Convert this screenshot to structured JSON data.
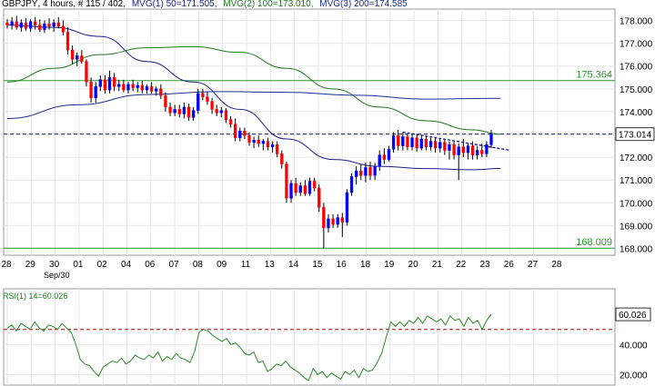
{
  "header": {
    "symbol": "GBPJPY",
    "interval": ", 4 hours, # 115 / 402,",
    "mvg1": "MVG(1) 50=171.505,",
    "mvg2": "MVG(2) 100=173.010,",
    "mvg3": "MVG(3) 200=174.585"
  },
  "colors": {
    "background": "#ffffff",
    "grid": "#e6e6e6",
    "up_candle": "#0000ff",
    "down_candle": "#ff0000",
    "mvg1": "#1c1c8a",
    "mvg2": "#1f7a1f",
    "mvg3": "#1c2e8f",
    "hline": "#2a9a2a",
    "price_line": "#1c1c6e",
    "rsi_line": "#2a8a2a",
    "rsi_ref": "#c00000",
    "header_mvg1": "#1c1c8a",
    "header_mvg2": "#1f7a1f",
    "header_mvg3": "#1c2e8f"
  },
  "chart_data": [
    {
      "type": "candlestick",
      "title": "GBPJPY, 4 hours",
      "ylim": [
        167.7,
        178.5
      ],
      "y_ticks": [
        168,
        169,
        170,
        171,
        172,
        173,
        174,
        175,
        176,
        177,
        178
      ],
      "y_tick_labels": [
        "168.000",
        "169.000",
        "170.000",
        "171.000",
        "172.000",
        "173.000",
        "174.000",
        "175.000",
        "176.000",
        "177.000",
        "178.000"
      ],
      "x_ticks": [
        "28",
        "29",
        "30",
        "01",
        "02",
        "04",
        "06",
        "07",
        "08",
        "09",
        "11",
        "13",
        "14",
        "15",
        "16",
        "18",
        "19",
        "20",
        "21",
        "22",
        "23",
        "26",
        "27",
        "28"
      ],
      "x_sublabel": "Sep/30",
      "grid": true,
      "candles": [
        {
          "o": 177.9,
          "h": 178.05,
          "l": 177.65,
          "c": 177.8
        },
        {
          "o": 177.8,
          "h": 178.15,
          "l": 177.6,
          "c": 177.95
        },
        {
          "o": 177.95,
          "h": 178.2,
          "l": 177.6,
          "c": 177.7
        },
        {
          "o": 177.7,
          "h": 178.05,
          "l": 177.5,
          "c": 177.9
        },
        {
          "o": 177.9,
          "h": 178.1,
          "l": 177.55,
          "c": 177.65
        },
        {
          "o": 177.65,
          "h": 178.05,
          "l": 177.5,
          "c": 177.95
        },
        {
          "o": 177.95,
          "h": 178.15,
          "l": 177.6,
          "c": 177.8
        },
        {
          "o": 177.8,
          "h": 178.05,
          "l": 177.5,
          "c": 177.6
        },
        {
          "o": 177.6,
          "h": 178.0,
          "l": 177.45,
          "c": 177.85
        },
        {
          "o": 177.85,
          "h": 178.1,
          "l": 177.6,
          "c": 177.75
        },
        {
          "o": 177.75,
          "h": 178.05,
          "l": 177.5,
          "c": 177.9
        },
        {
          "o": 177.9,
          "h": 178.15,
          "l": 177.65,
          "c": 177.75
        },
        {
          "o": 177.75,
          "h": 178.0,
          "l": 177.35,
          "c": 177.5
        },
        {
          "o": 177.5,
          "h": 177.7,
          "l": 176.5,
          "c": 176.7
        },
        {
          "o": 176.7,
          "h": 176.9,
          "l": 176.1,
          "c": 176.3
        },
        {
          "o": 176.3,
          "h": 176.6,
          "l": 176.0,
          "c": 176.45
        },
        {
          "o": 176.45,
          "h": 176.7,
          "l": 176.1,
          "c": 176.2
        },
        {
          "o": 176.2,
          "h": 176.3,
          "l": 175.1,
          "c": 175.3
        },
        {
          "o": 175.3,
          "h": 175.5,
          "l": 174.4,
          "c": 174.6
        },
        {
          "o": 174.6,
          "h": 175.3,
          "l": 174.4,
          "c": 175.1
        },
        {
          "o": 175.1,
          "h": 175.6,
          "l": 174.9,
          "c": 175.4
        },
        {
          "o": 175.4,
          "h": 175.6,
          "l": 174.8,
          "c": 174.95
        },
        {
          "o": 174.95,
          "h": 175.8,
          "l": 174.8,
          "c": 175.5
        },
        {
          "o": 175.5,
          "h": 175.7,
          "l": 174.9,
          "c": 175.1
        },
        {
          "o": 175.1,
          "h": 175.4,
          "l": 174.9,
          "c": 175.2
        },
        {
          "o": 175.2,
          "h": 175.4,
          "l": 174.85,
          "c": 174.95
        },
        {
          "o": 174.95,
          "h": 175.3,
          "l": 174.8,
          "c": 175.2
        },
        {
          "o": 175.2,
          "h": 175.4,
          "l": 174.9,
          "c": 175.05
        },
        {
          "o": 175.05,
          "h": 175.3,
          "l": 174.85,
          "c": 175.15
        },
        {
          "o": 175.15,
          "h": 175.35,
          "l": 174.8,
          "c": 174.95
        },
        {
          "o": 174.95,
          "h": 175.2,
          "l": 174.8,
          "c": 175.1
        },
        {
          "o": 175.1,
          "h": 175.3,
          "l": 174.8,
          "c": 174.9
        },
        {
          "o": 174.9,
          "h": 175.1,
          "l": 174.7,
          "c": 175.0
        },
        {
          "o": 175.0,
          "h": 175.2,
          "l": 174.55,
          "c": 174.7
        },
        {
          "o": 174.7,
          "h": 174.85,
          "l": 174.0,
          "c": 174.2
        },
        {
          "o": 174.2,
          "h": 174.4,
          "l": 173.8,
          "c": 173.95
        },
        {
          "o": 173.95,
          "h": 174.3,
          "l": 173.8,
          "c": 174.1
        },
        {
          "o": 174.1,
          "h": 174.3,
          "l": 173.75,
          "c": 173.9
        },
        {
          "o": 173.9,
          "h": 174.4,
          "l": 173.7,
          "c": 174.2
        },
        {
          "o": 174.2,
          "h": 174.35,
          "l": 173.6,
          "c": 173.75
        },
        {
          "o": 173.75,
          "h": 174.2,
          "l": 173.6,
          "c": 174.05
        },
        {
          "o": 174.05,
          "h": 175.0,
          "l": 173.9,
          "c": 174.8
        },
        {
          "o": 174.8,
          "h": 175.0,
          "l": 174.5,
          "c": 174.65
        },
        {
          "o": 174.65,
          "h": 174.85,
          "l": 174.3,
          "c": 174.45
        },
        {
          "o": 174.45,
          "h": 174.6,
          "l": 173.9,
          "c": 174.1
        },
        {
          "o": 174.1,
          "h": 174.3,
          "l": 173.8,
          "c": 173.95
        },
        {
          "o": 173.95,
          "h": 174.2,
          "l": 173.75,
          "c": 174.05
        },
        {
          "o": 174.05,
          "h": 174.15,
          "l": 173.5,
          "c": 173.65
        },
        {
          "o": 173.65,
          "h": 173.8,
          "l": 173.3,
          "c": 173.45
        },
        {
          "o": 173.45,
          "h": 173.7,
          "l": 172.7,
          "c": 172.85
        },
        {
          "o": 172.85,
          "h": 173.3,
          "l": 172.7,
          "c": 173.15
        },
        {
          "o": 173.15,
          "h": 173.3,
          "l": 172.8,
          "c": 172.95
        },
        {
          "o": 172.95,
          "h": 173.1,
          "l": 172.5,
          "c": 172.65
        },
        {
          "o": 172.65,
          "h": 172.9,
          "l": 172.4,
          "c": 172.75
        },
        {
          "o": 172.75,
          "h": 172.95,
          "l": 172.45,
          "c": 172.6
        },
        {
          "o": 172.6,
          "h": 172.8,
          "l": 172.3,
          "c": 172.7
        },
        {
          "o": 172.7,
          "h": 172.85,
          "l": 172.3,
          "c": 172.45
        },
        {
          "o": 172.45,
          "h": 172.7,
          "l": 172.2,
          "c": 172.55
        },
        {
          "o": 172.55,
          "h": 172.7,
          "l": 172.0,
          "c": 172.15
        },
        {
          "o": 172.15,
          "h": 172.3,
          "l": 171.5,
          "c": 171.7
        },
        {
          "o": 171.7,
          "h": 171.8,
          "l": 170.0,
          "c": 170.2
        },
        {
          "o": 170.2,
          "h": 171.0,
          "l": 170.0,
          "c": 170.85
        },
        {
          "o": 170.85,
          "h": 171.1,
          "l": 170.3,
          "c": 170.45
        },
        {
          "o": 170.45,
          "h": 170.9,
          "l": 170.3,
          "c": 170.75
        },
        {
          "o": 170.75,
          "h": 171.0,
          "l": 170.3,
          "c": 170.4
        },
        {
          "o": 170.4,
          "h": 171.1,
          "l": 170.3,
          "c": 170.95
        },
        {
          "o": 170.95,
          "h": 171.1,
          "l": 170.5,
          "c": 170.65
        },
        {
          "o": 170.65,
          "h": 170.8,
          "l": 169.6,
          "c": 169.8
        },
        {
          "o": 169.8,
          "h": 170.0,
          "l": 168.0,
          "c": 168.9
        },
        {
          "o": 168.9,
          "h": 169.5,
          "l": 168.7,
          "c": 169.3
        },
        {
          "o": 169.3,
          "h": 169.5,
          "l": 168.9,
          "c": 169.05
        },
        {
          "o": 169.05,
          "h": 169.5,
          "l": 168.9,
          "c": 169.35
        },
        {
          "o": 169.35,
          "h": 169.55,
          "l": 168.5,
          "c": 169.15
        },
        {
          "o": 169.15,
          "h": 170.6,
          "l": 169.0,
          "c": 170.45
        },
        {
          "o": 170.45,
          "h": 171.3,
          "l": 170.3,
          "c": 171.15
        },
        {
          "o": 171.15,
          "h": 171.6,
          "l": 170.8,
          "c": 171.4
        },
        {
          "o": 171.4,
          "h": 171.7,
          "l": 171.0,
          "c": 171.2
        },
        {
          "o": 171.2,
          "h": 171.75,
          "l": 170.9,
          "c": 171.55
        },
        {
          "o": 171.55,
          "h": 171.8,
          "l": 171.0,
          "c": 171.2
        },
        {
          "o": 171.2,
          "h": 171.75,
          "l": 171.0,
          "c": 171.6
        },
        {
          "o": 171.6,
          "h": 172.3,
          "l": 171.4,
          "c": 172.1
        },
        {
          "o": 172.1,
          "h": 172.4,
          "l": 171.7,
          "c": 171.9
        },
        {
          "o": 171.9,
          "h": 172.5,
          "l": 171.8,
          "c": 172.35
        },
        {
          "o": 172.35,
          "h": 173.1,
          "l": 172.2,
          "c": 172.95
        },
        {
          "o": 172.95,
          "h": 173.2,
          "l": 172.3,
          "c": 172.5
        },
        {
          "o": 172.5,
          "h": 173.1,
          "l": 172.3,
          "c": 172.9
        },
        {
          "o": 172.9,
          "h": 173.0,
          "l": 172.3,
          "c": 172.45
        },
        {
          "o": 172.45,
          "h": 173.0,
          "l": 172.3,
          "c": 172.85
        },
        {
          "o": 172.85,
          "h": 173.0,
          "l": 172.25,
          "c": 172.4
        },
        {
          "o": 172.4,
          "h": 172.95,
          "l": 172.3,
          "c": 172.8
        },
        {
          "o": 172.8,
          "h": 172.95,
          "l": 172.3,
          "c": 172.45
        },
        {
          "o": 172.45,
          "h": 172.85,
          "l": 172.3,
          "c": 172.7
        },
        {
          "o": 172.7,
          "h": 172.85,
          "l": 172.2,
          "c": 172.4
        },
        {
          "o": 172.4,
          "h": 172.8,
          "l": 172.2,
          "c": 172.65
        },
        {
          "o": 172.65,
          "h": 172.8,
          "l": 172.1,
          "c": 172.3
        },
        {
          "o": 172.3,
          "h": 172.7,
          "l": 171.9,
          "c": 172.55
        },
        {
          "o": 172.55,
          "h": 172.7,
          "l": 171.9,
          "c": 172.1
        },
        {
          "o": 172.1,
          "h": 172.6,
          "l": 171.0,
          "c": 172.45
        },
        {
          "o": 172.45,
          "h": 172.8,
          "l": 172.0,
          "c": 172.2
        },
        {
          "o": 172.2,
          "h": 172.6,
          "l": 171.9,
          "c": 172.5
        },
        {
          "o": 172.5,
          "h": 172.7,
          "l": 171.9,
          "c": 172.1
        },
        {
          "o": 172.1,
          "h": 172.5,
          "l": 171.9,
          "c": 172.3
        },
        {
          "o": 172.3,
          "h": 172.6,
          "l": 172.0,
          "c": 172.15
        },
        {
          "o": 172.15,
          "h": 172.7,
          "l": 172.0,
          "c": 172.55
        },
        {
          "o": 172.55,
          "h": 173.2,
          "l": 172.4,
          "c": 173.014
        }
      ],
      "moving_averages": [
        {
          "name": "MVG(1) 50",
          "last": 171.505,
          "points": [
            [
              0,
              177.8
            ],
            [
              10,
              177.7
            ],
            [
              20,
              177.3
            ],
            [
              30,
              176.2
            ],
            [
              40,
              175.3
            ],
            [
              50,
              174.1
            ],
            [
              60,
              172.8
            ],
            [
              70,
              171.9
            ],
            [
              80,
              171.6
            ],
            [
              90,
              171.5
            ],
            [
              100,
              171.45
            ],
            [
              106,
              171.505
            ]
          ]
        },
        {
          "name": "MVG(2) 100",
          "last": 173.01,
          "points": [
            [
              0,
              175.3
            ],
            [
              10,
              175.9
            ],
            [
              20,
              176.5
            ],
            [
              30,
              176.8
            ],
            [
              40,
              176.85
            ],
            [
              50,
              176.6
            ],
            [
              60,
              175.9
            ],
            [
              70,
              175.0
            ],
            [
              80,
              174.2
            ],
            [
              90,
              173.6
            ],
            [
              100,
              173.2
            ],
            [
              106,
              173.01
            ]
          ]
        },
        {
          "name": "MVG(3) 200",
          "last": 174.585,
          "points": [
            [
              0,
              173.7
            ],
            [
              15,
              174.3
            ],
            [
              30,
              174.75
            ],
            [
              45,
              174.88
            ],
            [
              60,
              174.85
            ],
            [
              75,
              174.72
            ],
            [
              90,
              174.55
            ],
            [
              106,
              174.585
            ]
          ]
        }
      ],
      "horizontal_lines": [
        {
          "value": 175.364,
          "label": "175.364",
          "style": "solid"
        },
        {
          "value": 168.009,
          "label": "168.009",
          "style": "solid"
        },
        {
          "value": 173.014,
          "label": "173.014",
          "style": "dashed"
        }
      ],
      "trendline": {
        "from": [
          85,
          173.1
        ],
        "to": [
          106,
          172.3
        ]
      }
    },
    {
      "type": "line",
      "title": "RSI(1) 14=60.026",
      "ylim": [
        13,
        77
      ],
      "y_ticks": [
        20,
        40
      ],
      "y_tick_labels": [
        "20.000",
        "40.000"
      ],
      "reference_line": 50,
      "last_label": "60.026",
      "grid": true,
      "values": [
        51,
        53,
        49,
        54,
        52,
        50,
        55,
        51,
        49,
        53,
        52,
        50,
        54,
        51,
        48,
        40,
        30,
        27,
        26,
        22,
        19,
        25,
        27,
        29,
        28,
        31,
        27,
        29,
        33,
        31,
        30,
        33,
        31,
        35,
        29,
        32,
        30,
        34,
        31,
        30,
        28,
        35,
        48,
        50,
        49,
        46,
        44,
        42,
        44,
        40,
        41,
        38,
        34,
        33,
        35,
        28,
        29,
        22,
        24,
        27,
        26,
        29,
        25,
        23,
        21,
        18,
        16,
        24,
        20,
        22,
        18,
        21,
        19,
        17,
        22,
        20,
        23,
        18,
        24,
        22,
        23,
        28,
        34,
        45,
        55,
        52,
        55,
        52,
        56,
        54,
        58,
        54,
        59,
        57,
        55,
        57,
        53,
        59,
        56,
        57,
        52,
        58,
        54,
        56,
        50,
        56,
        60.026
      ]
    }
  ]
}
